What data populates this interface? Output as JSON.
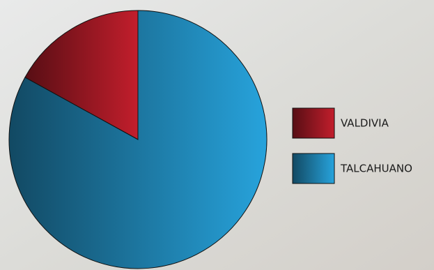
{
  "chart_data": {
    "type": "pie",
    "categories": [
      "VALDIVIA",
      "TALCAHUANO"
    ],
    "values": [
      17,
      83
    ],
    "colors": [
      "#c21e2c",
      "#27a3dc"
    ],
    "legend": "right"
  }
}
